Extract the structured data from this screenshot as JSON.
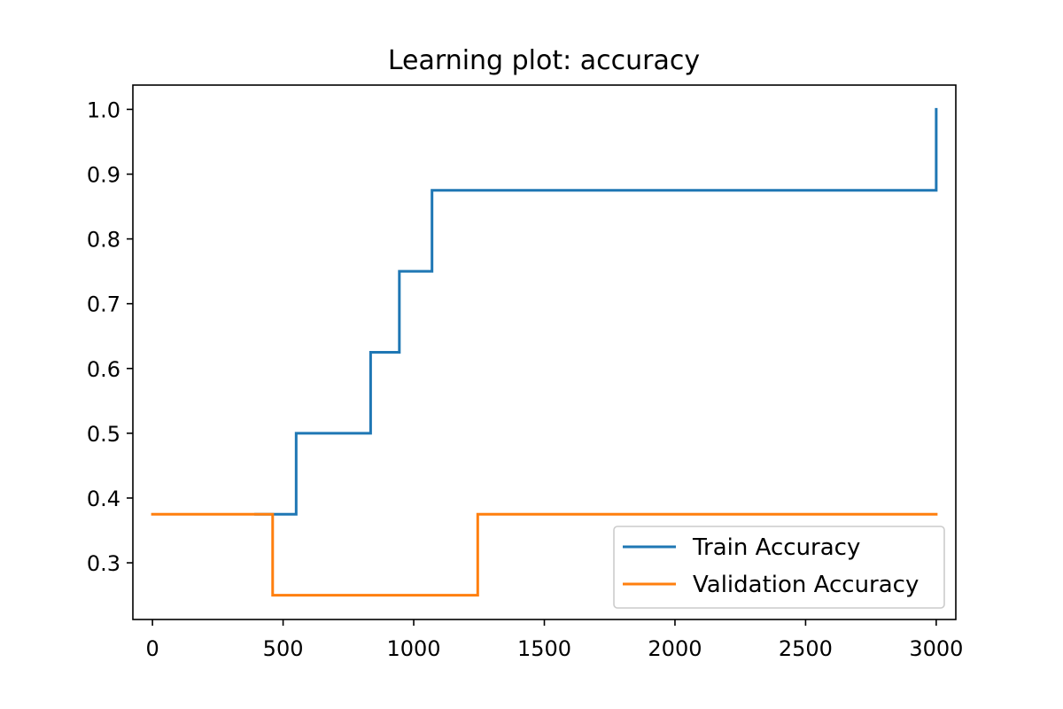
{
  "chart_data": {
    "type": "line",
    "title": "Learning plot: accuracy",
    "xlabel": "",
    "ylabel": "",
    "xlim": [
      -75,
      3075
    ],
    "ylim": [
      0.2125,
      1.0375
    ],
    "xticks": [
      0,
      500,
      1000,
      1500,
      2000,
      2500,
      3000
    ],
    "xtick_labels": [
      "0",
      "500",
      "1000",
      "1500",
      "2000",
      "2500",
      "3000"
    ],
    "yticks": [
      0.3,
      0.4,
      0.5,
      0.6,
      0.7,
      0.8,
      0.9,
      1.0
    ],
    "ytick_labels": [
      "0.3",
      "0.4",
      "0.5",
      "0.6",
      "0.7",
      "0.8",
      "0.9",
      "1.0"
    ],
    "grid": false,
    "legend_position": "lower-right",
    "step": "post",
    "series": [
      {
        "name": "Train Accuracy",
        "color": "#1f77b4",
        "x": [
          395,
          550,
          835,
          945,
          1070,
          3000
        ],
        "y": [
          0.375,
          0.5,
          0.625,
          0.75,
          0.875,
          1.0
        ]
      },
      {
        "name": "Validation Accuracy",
        "color": "#ff7f0e",
        "x": [
          0,
          460,
          1245,
          3000
        ],
        "y": [
          0.375,
          0.25,
          0.375,
          0.375
        ]
      }
    ]
  }
}
